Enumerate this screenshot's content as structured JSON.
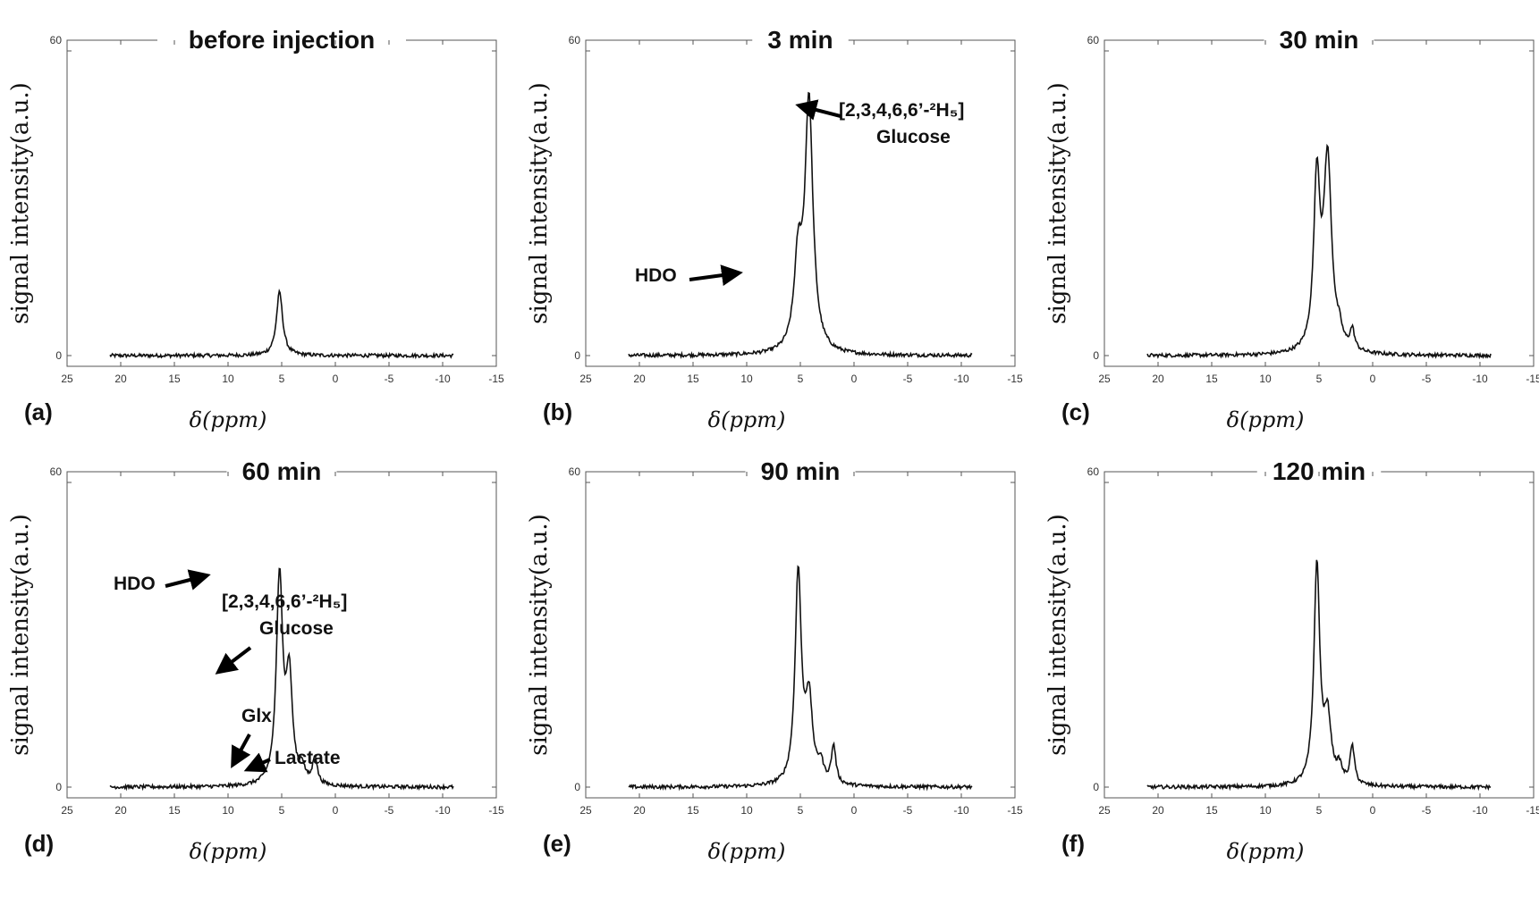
{
  "figure": {
    "ylabel": "signal intensity(a.u.)",
    "xlabel": "δ(ppm)"
  },
  "chart_data": [
    {
      "type": "line",
      "panel_label": "(a)",
      "title": "before injection",
      "xlabel": "δ(ppm)",
      "ylabel": "signal intensity(a.u.)",
      "xlim": [
        25,
        -15
      ],
      "ylim": [
        0,
        60
      ],
      "xticks": [
        "25",
        "20",
        "15",
        "10",
        "5",
        "0",
        "-5",
        "-10",
        "-15"
      ],
      "yticks": [
        "0",
        "60"
      ],
      "x_range": [
        21,
        -11
      ],
      "baseline_noise": 0.35,
      "peaks": [
        {
          "center": 5.2,
          "height": 12.5,
          "width": 0.35
        }
      ],
      "annotations": []
    },
    {
      "type": "line",
      "panel_label": "(b)",
      "title": "3 min",
      "xlabel": "δ(ppm)",
      "ylabel": "signal intensity(a.u.)",
      "xlim": [
        25,
        -15
      ],
      "ylim": [
        0,
        60
      ],
      "xticks": [
        "25",
        "20",
        "15",
        "10",
        "5",
        "0",
        "-5",
        "-10",
        "-15"
      ],
      "yticks": [
        "0",
        "60"
      ],
      "x_range": [
        21,
        -11
      ],
      "baseline_noise": 0.35,
      "peaks": [
        {
          "center": 5.2,
          "height": 17.0,
          "width": 0.45
        },
        {
          "center": 4.2,
          "height": 49.0,
          "width": 0.45
        }
      ],
      "annotations": [
        {
          "text": "HDO",
          "x": 5.0,
          "y": 23
        },
        {
          "text": "[2,3,4,6,6’-²H₅]",
          "text2": "Glucose",
          "x": 4.2,
          "y": 55
        }
      ]
    },
    {
      "type": "line",
      "panel_label": "(c)",
      "title": "30 min",
      "xlabel": "δ(ppm)",
      "ylabel": "signal intensity(a.u.)",
      "xlim": [
        25,
        -15
      ],
      "ylim": [
        0,
        60
      ],
      "xticks": [
        "25",
        "20",
        "15",
        "10",
        "5",
        "0",
        "-5",
        "-10",
        "-15"
      ],
      "yticks": [
        "0",
        "60"
      ],
      "x_range": [
        21,
        -11
      ],
      "baseline_noise": 0.35,
      "peaks": [
        {
          "center": 5.2,
          "height": 33.0,
          "width": 0.35
        },
        {
          "center": 4.2,
          "height": 37.5,
          "width": 0.45
        },
        {
          "center": 3.1,
          "height": 2.5,
          "width": 0.3
        },
        {
          "center": 1.9,
          "height": 4.0,
          "width": 0.25
        }
      ],
      "annotations": []
    },
    {
      "type": "line",
      "panel_label": "(d)",
      "title": "60 min",
      "xlabel": "δ(ppm)",
      "ylabel": "signal intensity(a.u.)",
      "xlim": [
        25,
        -15
      ],
      "ylim": [
        0,
        60
      ],
      "xticks": [
        "25",
        "20",
        "15",
        "10",
        "5",
        "0",
        "-5",
        "-10",
        "-15"
      ],
      "yticks": [
        "0",
        "60"
      ],
      "x_range": [
        21,
        -11
      ],
      "baseline_noise": 0.35,
      "peaks": [
        {
          "center": 5.2,
          "height": 41.0,
          "width": 0.35
        },
        {
          "center": 4.3,
          "height": 20.5,
          "width": 0.35
        },
        {
          "center": 3.1,
          "height": 3.0,
          "width": 0.3
        },
        {
          "center": 1.9,
          "height": 5.5,
          "width": 0.25
        }
      ],
      "annotations": [
        {
          "text": "HDO",
          "x": 5.2,
          "y": 41.5
        },
        {
          "text": "[2,3,4,6,6’-²H₅]",
          "text2": "Glucose",
          "x": 4.3,
          "y": 25
        },
        {
          "text": "Glx",
          "x": 3.1,
          "y": 6.5
        },
        {
          "text": "Lactate",
          "x": 1.9,
          "y": 4.5
        }
      ]
    },
    {
      "type": "line",
      "panel_label": "(e)",
      "title": "90 min",
      "xlabel": "δ(ppm)",
      "ylabel": "signal intensity(a.u.)",
      "xlim": [
        25,
        -15
      ],
      "ylim": [
        0,
        60
      ],
      "xticks": [
        "25",
        "20",
        "15",
        "10",
        "5",
        "0",
        "-5",
        "-10",
        "-15"
      ],
      "yticks": [
        "0",
        "60"
      ],
      "x_range": [
        21,
        -11
      ],
      "baseline_noise": 0.35,
      "peaks": [
        {
          "center": 5.2,
          "height": 41.5,
          "width": 0.35
        },
        {
          "center": 4.2,
          "height": 16.0,
          "width": 0.4
        },
        {
          "center": 3.1,
          "height": 3.5,
          "width": 0.3
        },
        {
          "center": 1.9,
          "height": 7.5,
          "width": 0.25
        }
      ],
      "annotations": []
    },
    {
      "type": "line",
      "panel_label": "(f)",
      "title": "120 min",
      "xlabel": "δ(ppm)",
      "ylabel": "signal intensity(a.u.)",
      "xlim": [
        25,
        -15
      ],
      "ylim": [
        0,
        60
      ],
      "xticks": [
        "25",
        "20",
        "15",
        "10",
        "5",
        "0",
        "-5",
        "-10",
        "-15"
      ],
      "yticks": [
        "0",
        "60"
      ],
      "x_range": [
        21,
        -11
      ],
      "baseline_noise": 0.35,
      "peaks": [
        {
          "center": 5.2,
          "height": 43.0,
          "width": 0.33
        },
        {
          "center": 4.2,
          "height": 12.5,
          "width": 0.4
        },
        {
          "center": 3.1,
          "height": 3.0,
          "width": 0.3
        },
        {
          "center": 1.9,
          "height": 7.5,
          "width": 0.25
        }
      ],
      "annotations": []
    }
  ]
}
